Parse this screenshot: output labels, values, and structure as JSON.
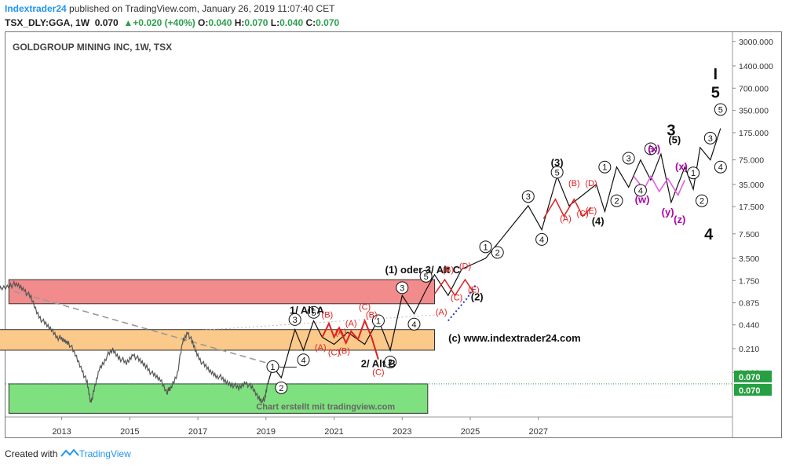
{
  "header": {
    "user": "Indextrader24",
    "published_text": " published on TradingView.com, January 26, 2019 11:07:40 CET",
    "symbol": "TSX_DLY:GGA, 1W",
    "price": "0.070",
    "change": "+0.020 (+40%)",
    "o_label": "O:",
    "o": "0.040",
    "h_label": "H:",
    "h": "0.070",
    "l_label": "L:",
    "l": "0.040",
    "c_label": "C:",
    "c": "0.070"
  },
  "footer": {
    "created_with": "Created with",
    "brand": "TradingView"
  },
  "colors": {
    "up": "#2e9e4f",
    "user": "#2196f3",
    "red_zone": "#f28b8b",
    "orange_zone": "#fbc98a",
    "green_zone": "#7fe07f",
    "wave_red": "#e02020",
    "wave_pink": "#e060e0",
    "wave_purple": "#aa00aa",
    "price_label": "#26a041"
  },
  "chart_data": {
    "type": "line",
    "title": "GOLDGROUP MINING INC, 1W, TSX",
    "y_scale": "log",
    "x_ticks": [
      "2013",
      "2015",
      "2017",
      "2019",
      "2021",
      "2023",
      "2025",
      "2027"
    ],
    "y_ticks": [
      "3000.000",
      "1400.000",
      "700.000",
      "350.000",
      "175.000",
      "75.000",
      "35.000",
      "17.500",
      "7.500",
      "3.500",
      "1.750",
      "0.875",
      "0.440",
      "0.210",
      "0.100"
    ],
    "last_price_labels": [
      "0.070",
      "0.070"
    ],
    "zones": [
      {
        "name": "red-resistance-zone",
        "x0": 2011.45,
        "x1": 2023.95,
        "y0": 0.85,
        "y1": 1.8
      },
      {
        "name": "orange-resistance-zone",
        "x0": 2010.95,
        "x1": 2023.95,
        "y0": 0.2,
        "y1": 0.38
      },
      {
        "name": "green-support-zone",
        "x0": 2011.45,
        "x1": 2023.75,
        "y0": 0.028,
        "y1": 0.07
      }
    ],
    "price_series": [
      [
        2011.0,
        1.2
      ],
      [
        2011.2,
        1.35
      ],
      [
        2011.5,
        1.55
      ],
      [
        2011.7,
        1.5
      ],
      [
        2011.9,
        1.35
      ],
      [
        2012.1,
        1.0
      ],
      [
        2012.3,
        0.62
      ],
      [
        2012.5,
        0.45
      ],
      [
        2012.7,
        0.38
      ],
      [
        2012.9,
        0.3
      ],
      [
        2013.05,
        0.27
      ],
      [
        2013.2,
        0.26
      ],
      [
        2013.4,
        0.17
      ],
      [
        2013.6,
        0.11
      ],
      [
        2013.75,
        0.07
      ],
      [
        2013.85,
        0.04
      ],
      [
        2013.95,
        0.055
      ],
      [
        2014.1,
        0.11
      ],
      [
        2014.3,
        0.16
      ],
      [
        2014.5,
        0.2
      ],
      [
        2014.7,
        0.16
      ],
      [
        2014.9,
        0.13
      ],
      [
        2015.1,
        0.18
      ],
      [
        2015.3,
        0.14
      ],
      [
        2015.5,
        0.12
      ],
      [
        2015.7,
        0.09
      ],
      [
        2015.9,
        0.08
      ],
      [
        2016.1,
        0.055
      ],
      [
        2016.2,
        0.06
      ],
      [
        2016.4,
        0.1
      ],
      [
        2016.55,
        0.25
      ],
      [
        2016.7,
        0.36
      ],
      [
        2016.85,
        0.24
      ],
      [
        2017.0,
        0.17
      ],
      [
        2017.2,
        0.12
      ],
      [
        2017.4,
        0.1
      ],
      [
        2017.6,
        0.09
      ],
      [
        2017.8,
        0.075
      ],
      [
        2018.0,
        0.07
      ],
      [
        2018.2,
        0.06
      ],
      [
        2018.4,
        0.075
      ],
      [
        2018.6,
        0.06
      ],
      [
        2018.8,
        0.045
      ],
      [
        2018.95,
        0.04
      ],
      [
        2019.05,
        0.07
      ]
    ],
    "wave_main": [
      [
        2019.05,
        0.07
      ],
      [
        2019.2,
        0.12
      ],
      [
        2019.45,
        0.085
      ],
      [
        2019.85,
        0.38
      ],
      [
        2020.1,
        0.2
      ],
      [
        2020.4,
        0.5
      ],
      [
        2020.65,
        0.3
      ],
      [
        2021.0,
        0.24
      ],
      [
        2021.4,
        0.35
      ],
      [
        2021.6,
        0.3
      ],
      [
        2021.9,
        0.24
      ],
      [
        2022.3,
        0.52
      ],
      [
        2022.65,
        0.2
      ],
      [
        2023.0,
        1.1
      ],
      [
        2023.35,
        0.62
      ],
      [
        2023.7,
        1.3
      ],
      [
        2023.95,
        2.1
      ],
      [
        2024.35,
        1.1
      ],
      [
        2024.75,
        2.5
      ],
      [
        2025.45,
        3.5
      ],
      [
        2025.8,
        5.5
      ],
      [
        2026.7,
        18
      ],
      [
        2027.1,
        8.5
      ],
      [
        2027.55,
        45
      ],
      [
        2027.9,
        18
      ],
      [
        2028.3,
        25
      ],
      [
        2028.7,
        35
      ],
      [
        2028.95,
        15
      ],
      [
        2029.3,
        60
      ],
      [
        2029.65,
        32
      ],
      [
        2030.0,
        75
      ],
      [
        2030.3,
        40
      ],
      [
        2030.6,
        90
      ],
      [
        2030.9,
        20
      ],
      [
        2031.3,
        60
      ],
      [
        2031.55,
        30
      ],
      [
        2031.75,
        110
      ],
      [
        2032.05,
        75
      ],
      [
        2032.35,
        200
      ]
    ],
    "wave_alt_red": [
      [
        2020.65,
        0.3
      ],
      [
        2020.85,
        0.46
      ],
      [
        2021.0,
        0.3
      ],
      [
        2021.15,
        0.4
      ],
      [
        2021.35,
        0.25
      ],
      [
        2021.5,
        0.36
      ],
      [
        2021.7,
        0.28
      ],
      [
        2021.9,
        0.5
      ],
      [
        2022.1,
        0.3
      ],
      [
        2022.3,
        0.15
      ]
    ],
    "wave_red_top": [
      [
        2023.95,
        1.15
      ],
      [
        2024.25,
        1.8
      ],
      [
        2024.55,
        1.1
      ],
      [
        2024.85,
        1.8
      ],
      [
        2025.1,
        1.2
      ]
    ],
    "wave_red_mid": [
      [
        2027.15,
        12
      ],
      [
        2027.5,
        22
      ],
      [
        2027.75,
        13
      ],
      [
        2028.05,
        22
      ],
      [
        2028.3,
        13
      ],
      [
        2028.55,
        17
      ]
    ],
    "wave_pink": [
      [
        2029.8,
        45
      ],
      [
        2030.1,
        30
      ],
      [
        2030.3,
        45
      ],
      [
        2030.55,
        28
      ],
      [
        2030.8,
        42
      ],
      [
        2031.1,
        25
      ],
      [
        2031.3,
        40
      ]
    ],
    "dotted_projection": [
      [
        2024.35,
        0.5
      ],
      [
        2024.9,
        1.0
      ],
      [
        2025.15,
        1.5
      ]
    ],
    "dashed_trendline": [
      [
        2011.6,
        1.25
      ],
      [
        2019.4,
        0.12
      ]
    ],
    "annotations": [
      {
        "text": "1/ Alt A",
        "x": 2020.2,
        "y": 0.62,
        "kind": "bold-black"
      },
      {
        "text": "2/ Alt B",
        "x": 2022.3,
        "y": 0.118,
        "kind": "bold-black"
      },
      {
        "text": "(1) oder 3/ Alt C",
        "x": 2023.6,
        "y": 2.2,
        "kind": "bold-black"
      },
      {
        "text": "(2)",
        "x": 2025.2,
        "y": 0.95,
        "kind": "bold-black"
      },
      {
        "text": "(3)",
        "x": 2027.55,
        "y": 62,
        "kind": "bold-black"
      },
      {
        "text": "(4)",
        "x": 2028.75,
        "y": 10,
        "kind": "bold-black"
      },
      {
        "text": "(5)",
        "x": 2031.0,
        "y": 125,
        "kind": "bold-black"
      },
      {
        "text": "3",
        "x": 2030.9,
        "y": 160,
        "kind": "big-black"
      },
      {
        "text": "4",
        "x": 2032.0,
        "y": 6.3,
        "kind": "big-black"
      },
      {
        "text": "I",
        "x": 2032.2,
        "y": 920,
        "kind": "big-black"
      },
      {
        "text": "5",
        "x": 2032.2,
        "y": 520,
        "kind": "big-black"
      },
      {
        "text": "(c) www.indextrader24.com",
        "x": 2026.3,
        "y": 0.26,
        "kind": "bold-black"
      },
      {
        "text": "(x)",
        "x": 2030.4,
        "y": 95,
        "kind": "purple"
      },
      {
        "text": "(x)",
        "x": 2031.2,
        "y": 55,
        "kind": "purple"
      },
      {
        "text": "(w)",
        "x": 2030.05,
        "y": 19.5,
        "kind": "purple"
      },
      {
        "text": "(y)",
        "x": 2030.8,
        "y": 13.2,
        "kind": "purple"
      },
      {
        "text": "(z)",
        "x": 2031.15,
        "y": 10.5,
        "kind": "purple"
      },
      {
        "text": "(A)",
        "x": 2020.6,
        "y": 0.2,
        "kind": "red"
      },
      {
        "text": "(B)",
        "x": 2020.8,
        "y": 0.55,
        "kind": "red"
      },
      {
        "text": "(C)",
        "x": 2021.0,
        "y": 0.17,
        "kind": "red"
      },
      {
        "text": "(A)",
        "x": 2021.2,
        "y": 0.32,
        "kind": "red"
      },
      {
        "text": "(B)",
        "x": 2021.3,
        "y": 0.18,
        "kind": "red"
      },
      {
        "text": "(A)",
        "x": 2021.5,
        "y": 0.42,
        "kind": "red"
      },
      {
        "text": "(C)",
        "x": 2021.9,
        "y": 0.7,
        "kind": "red"
      },
      {
        "text": "(B)",
        "x": 2022.1,
        "y": 0.55,
        "kind": "red"
      },
      {
        "text": "(C)",
        "x": 2022.3,
        "y": 0.093,
        "kind": "red"
      },
      {
        "text": "(B)",
        "x": 2024.35,
        "y": 2.25,
        "kind": "red"
      },
      {
        "text": "(D)",
        "x": 2024.85,
        "y": 2.5,
        "kind": "red"
      },
      {
        "text": "(A)",
        "x": 2024.15,
        "y": 0.6,
        "kind": "red"
      },
      {
        "text": "(C)",
        "x": 2024.6,
        "y": 0.95,
        "kind": "red"
      },
      {
        "text": "(E)",
        "x": 2025.1,
        "y": 1.2,
        "kind": "red"
      },
      {
        "text": "(B)",
        "x": 2028.05,
        "y": 33,
        "kind": "red"
      },
      {
        "text": "(D)",
        "x": 2028.55,
        "y": 33,
        "kind": "red"
      },
      {
        "text": "(A)",
        "x": 2027.8,
        "y": 11,
        "kind": "red"
      },
      {
        "text": "(C)",
        "x": 2028.3,
        "y": 13,
        "kind": "red"
      },
      {
        "text": "(E)",
        "x": 2028.55,
        "y": 14,
        "kind": "red"
      },
      {
        "text": "Chart erstellt mit tradingview.com",
        "x": 2020.75,
        "y": 0.0315,
        "kind": "watermark"
      }
    ],
    "circled": [
      {
        "text": "1",
        "x": 2019.2,
        "y": 0.12
      },
      {
        "text": "2",
        "x": 2019.45,
        "y": 0.062
      },
      {
        "text": "3",
        "x": 2019.85,
        "y": 0.52
      },
      {
        "text": "4",
        "x": 2020.1,
        "y": 0.148
      },
      {
        "text": "5",
        "x": 2020.4,
        "y": 0.65
      },
      {
        "text": "1",
        "x": 2022.3,
        "y": 0.5
      },
      {
        "text": "2",
        "x": 2022.65,
        "y": 0.138
      },
      {
        "text": "3",
        "x": 2023.0,
        "y": 1.4
      },
      {
        "text": "4",
        "x": 2023.35,
        "y": 0.45
      },
      {
        "text": "5",
        "x": 2023.7,
        "y": 2.0
      },
      {
        "text": "1",
        "x": 2025.45,
        "y": 5.0
      },
      {
        "text": "2",
        "x": 2025.8,
        "y": 4.2
      },
      {
        "text": "3",
        "x": 2026.7,
        "y": 24
      },
      {
        "text": "4",
        "x": 2027.1,
        "y": 6.3
      },
      {
        "text": "5",
        "x": 2027.55,
        "y": 51
      },
      {
        "text": "1",
        "x": 2028.95,
        "y": 60
      },
      {
        "text": "2",
        "x": 2029.3,
        "y": 21
      },
      {
        "text": "3",
        "x": 2029.65,
        "y": 79
      },
      {
        "text": "4",
        "x": 2030.0,
        "y": 29
      },
      {
        "text": "5",
        "x": 2030.3,
        "y": 106
      },
      {
        "text": "1",
        "x": 2031.55,
        "y": 50
      },
      {
        "text": "2",
        "x": 2031.8,
        "y": 21
      },
      {
        "text": "3",
        "x": 2032.05,
        "y": 148
      },
      {
        "text": "4",
        "x": 2032.35,
        "y": 60
      },
      {
        "text": "5",
        "x": 2032.35,
        "y": 360
      }
    ]
  }
}
